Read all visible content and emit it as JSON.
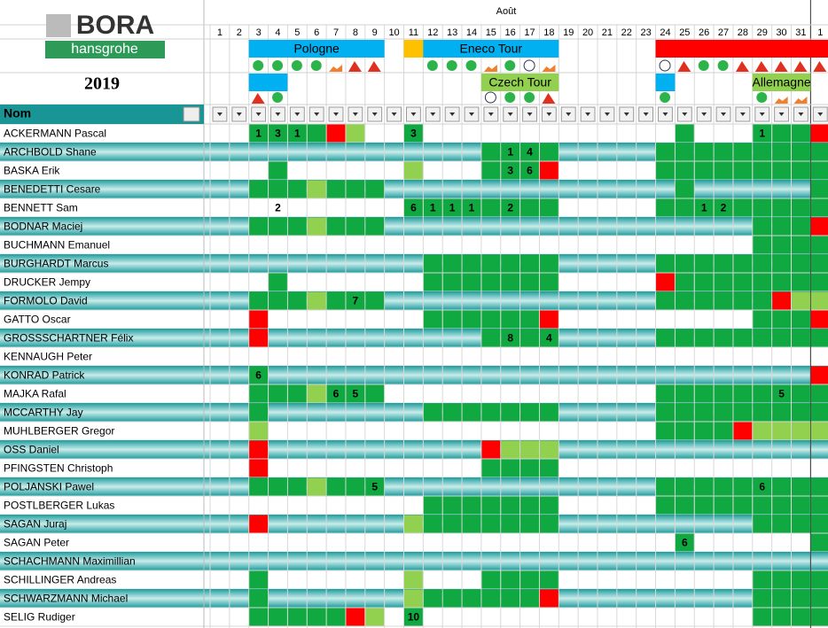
{
  "header": {
    "logo": "BORA",
    "logo_sub": "hansgrohe",
    "year": "2019",
    "month": "Août",
    "days": [
      1,
      2,
      3,
      4,
      5,
      6,
      7,
      8,
      9,
      10,
      11,
      12,
      13,
      14,
      15,
      16,
      17,
      18,
      19,
      20,
      21,
      22,
      23,
      24,
      25,
      26,
      27,
      28,
      29,
      30,
      31,
      1
    ],
    "name_column": "Nom"
  },
  "races": [
    {
      "name": "Pologne"
    },
    {
      "name": "Eneco Tour"
    },
    {
      "name": "Czech Tour"
    },
    {
      "name": "Allemagne"
    }
  ],
  "riders": [
    {
      "name": "ACKERMANN Pascal",
      "cells": [
        null,
        null,
        1,
        3,
        1,
        null,
        null,
        null,
        null,
        null,
        3,
        null,
        null,
        null,
        null,
        null,
        null,
        null,
        null,
        null,
        null,
        null,
        null,
        null,
        null,
        null,
        null,
        null,
        1,
        null,
        null,
        null
      ]
    },
    {
      "name": "ARCHBOLD Shane",
      "cells": [
        null,
        null,
        null,
        null,
        null,
        null,
        null,
        null,
        null,
        null,
        null,
        null,
        null,
        null,
        null,
        1,
        4,
        null,
        null,
        null,
        null,
        null,
        null,
        null,
        null,
        null,
        null,
        null,
        null,
        null,
        null,
        null
      ]
    },
    {
      "name": "BASKA Erik",
      "cells": [
        null,
        null,
        null,
        null,
        null,
        null,
        null,
        null,
        null,
        null,
        null,
        null,
        null,
        null,
        null,
        3,
        6,
        null,
        null,
        null,
        null,
        null,
        null,
        null,
        null,
        null,
        null,
        null,
        null,
        null,
        null,
        null
      ]
    },
    {
      "name": "BENEDETTI Cesare",
      "cells": [
        null,
        null,
        null,
        null,
        null,
        null,
        null,
        null,
        null,
        null,
        null,
        null,
        null,
        null,
        null,
        null,
        null,
        null,
        null,
        null,
        null,
        null,
        null,
        null,
        null,
        null,
        null,
        null,
        null,
        null,
        null,
        null
      ]
    },
    {
      "name": "BENNETT Sam",
      "cells": [
        null,
        null,
        null,
        2,
        null,
        null,
        null,
        null,
        null,
        null,
        6,
        1,
        1,
        1,
        null,
        2,
        null,
        null,
        null,
        null,
        null,
        null,
        null,
        null,
        null,
        1,
        2,
        null,
        null,
        null,
        null,
        null
      ]
    },
    {
      "name": "BODNAR Maciej",
      "cells": [
        null,
        null,
        null,
        null,
        null,
        null,
        null,
        null,
        null,
        null,
        null,
        null,
        null,
        null,
        null,
        null,
        null,
        null,
        null,
        null,
        null,
        null,
        null,
        null,
        null,
        null,
        null,
        null,
        null,
        null,
        null,
        null
      ]
    },
    {
      "name": "BUCHMANN Emanuel",
      "cells": [
        null,
        null,
        null,
        null,
        null,
        null,
        null,
        null,
        null,
        null,
        null,
        null,
        null,
        null,
        null,
        null,
        null,
        null,
        null,
        null,
        null,
        null,
        null,
        null,
        null,
        null,
        null,
        null,
        null,
        null,
        null,
        null
      ]
    },
    {
      "name": "BURGHARDT Marcus",
      "cells": [
        null,
        null,
        null,
        null,
        null,
        null,
        null,
        null,
        null,
        null,
        null,
        null,
        null,
        null,
        null,
        null,
        null,
        null,
        null,
        null,
        null,
        null,
        null,
        null,
        null,
        null,
        null,
        null,
        null,
        null,
        null,
        null
      ]
    },
    {
      "name": "DRUCKER Jempy",
      "cells": [
        null,
        null,
        null,
        null,
        null,
        null,
        null,
        null,
        null,
        null,
        null,
        null,
        null,
        null,
        null,
        null,
        null,
        null,
        null,
        null,
        null,
        null,
        null,
        null,
        null,
        null,
        null,
        null,
        null,
        null,
        null,
        null
      ]
    },
    {
      "name": "FORMOLO David",
      "cells": [
        null,
        null,
        null,
        null,
        null,
        null,
        null,
        7,
        null,
        null,
        null,
        null,
        null,
        null,
        null,
        null,
        null,
        null,
        null,
        null,
        null,
        null,
        null,
        null,
        null,
        null,
        null,
        null,
        null,
        null,
        null,
        null
      ]
    },
    {
      "name": "GATTO Oscar",
      "cells": [
        null,
        null,
        null,
        null,
        null,
        null,
        null,
        null,
        null,
        null,
        null,
        null,
        null,
        null,
        null,
        null,
        null,
        null,
        null,
        null,
        null,
        null,
        null,
        null,
        null,
        null,
        null,
        null,
        null,
        null,
        null,
        null
      ]
    },
    {
      "name": "GROSSSCHARTNER Félix",
      "cells": [
        null,
        null,
        null,
        null,
        null,
        null,
        null,
        null,
        null,
        null,
        null,
        null,
        null,
        null,
        null,
        8,
        null,
        4,
        null,
        null,
        null,
        null,
        null,
        null,
        null,
        null,
        null,
        null,
        null,
        null,
        null,
        null
      ]
    },
    {
      "name": "KENNAUGH Peter",
      "cells": [
        null,
        null,
        null,
        null,
        null,
        null,
        null,
        null,
        null,
        null,
        null,
        null,
        null,
        null,
        null,
        null,
        null,
        null,
        null,
        null,
        null,
        null,
        null,
        null,
        null,
        null,
        null,
        null,
        null,
        null,
        null,
        null
      ]
    },
    {
      "name": "KONRAD Patrick",
      "cells": [
        null,
        null,
        6,
        null,
        null,
        null,
        null,
        null,
        null,
        null,
        null,
        null,
        null,
        null,
        null,
        null,
        null,
        null,
        null,
        null,
        null,
        null,
        null,
        null,
        null,
        null,
        null,
        null,
        null,
        null,
        null,
        null
      ]
    },
    {
      "name": "MAJKA Rafal",
      "cells": [
        null,
        null,
        null,
        null,
        null,
        null,
        6,
        5,
        null,
        null,
        null,
        null,
        null,
        null,
        null,
        null,
        null,
        null,
        null,
        null,
        null,
        null,
        null,
        null,
        null,
        null,
        null,
        null,
        null,
        5,
        null,
        null
      ]
    },
    {
      "name": "MCCARTHY Jay",
      "cells": [
        null,
        null,
        null,
        null,
        null,
        null,
        null,
        null,
        null,
        null,
        null,
        null,
        null,
        null,
        null,
        null,
        null,
        null,
        null,
        null,
        null,
        null,
        null,
        null,
        null,
        null,
        null,
        null,
        null,
        null,
        null,
        null
      ]
    },
    {
      "name": "MUHLBERGER Gregor",
      "cells": [
        null,
        null,
        null,
        null,
        null,
        null,
        null,
        null,
        null,
        null,
        null,
        null,
        null,
        null,
        null,
        null,
        null,
        null,
        null,
        null,
        null,
        null,
        null,
        null,
        null,
        null,
        null,
        null,
        null,
        null,
        null,
        null
      ]
    },
    {
      "name": "OSS Daniel",
      "cells": [
        null,
        null,
        null,
        null,
        null,
        null,
        null,
        null,
        null,
        null,
        null,
        null,
        null,
        null,
        null,
        null,
        null,
        null,
        null,
        null,
        null,
        null,
        null,
        null,
        null,
        null,
        null,
        null,
        null,
        null,
        null,
        null
      ]
    },
    {
      "name": "PFINGSTEN Christoph",
      "cells": [
        null,
        null,
        null,
        null,
        null,
        null,
        null,
        null,
        null,
        null,
        null,
        null,
        null,
        null,
        null,
        null,
        null,
        null,
        null,
        null,
        null,
        null,
        null,
        null,
        null,
        null,
        null,
        null,
        null,
        null,
        null,
        null
      ]
    },
    {
      "name": "POLJANSKI Pawel",
      "cells": [
        null,
        null,
        null,
        null,
        null,
        null,
        null,
        null,
        5,
        null,
        null,
        null,
        null,
        null,
        null,
        null,
        null,
        null,
        null,
        null,
        null,
        null,
        null,
        null,
        null,
        null,
        null,
        null,
        6,
        null,
        null,
        null
      ]
    },
    {
      "name": "POSTLBERGER Lukas",
      "cells": [
        null,
        null,
        null,
        null,
        null,
        null,
        null,
        null,
        null,
        null,
        null,
        null,
        null,
        null,
        null,
        null,
        null,
        null,
        null,
        null,
        null,
        null,
        null,
        null,
        null,
        null,
        null,
        null,
        null,
        null,
        null,
        null
      ]
    },
    {
      "name": "SAGAN Juraj",
      "cells": [
        null,
        null,
        null,
        null,
        null,
        null,
        null,
        null,
        null,
        null,
        null,
        null,
        null,
        null,
        null,
        null,
        null,
        null,
        null,
        null,
        null,
        null,
        null,
        null,
        null,
        null,
        null,
        null,
        null,
        null,
        null,
        null
      ]
    },
    {
      "name": "SAGAN Peter",
      "cells": [
        null,
        null,
        null,
        null,
        null,
        null,
        null,
        null,
        null,
        null,
        null,
        null,
        null,
        null,
        null,
        null,
        null,
        null,
        null,
        null,
        null,
        null,
        null,
        null,
        6,
        null,
        null,
        null,
        null,
        null,
        null,
        null
      ]
    },
    {
      "name": "SCHACHMANN Maximillian",
      "cells": [
        null,
        null,
        null,
        null,
        null,
        null,
        null,
        null,
        null,
        null,
        null,
        null,
        null,
        null,
        null,
        null,
        null,
        null,
        null,
        null,
        null,
        null,
        null,
        null,
        null,
        null,
        null,
        null,
        null,
        null,
        null,
        null
      ]
    },
    {
      "name": "SCHILLINGER Andreas",
      "cells": [
        null,
        null,
        null,
        null,
        null,
        null,
        null,
        null,
        null,
        null,
        null,
        null,
        null,
        null,
        null,
        null,
        null,
        null,
        null,
        null,
        null,
        null,
        null,
        null,
        null,
        null,
        null,
        null,
        null,
        null,
        null,
        null
      ]
    },
    {
      "name": "SCHWARZMANN Michael",
      "cells": [
        null,
        null,
        null,
        null,
        null,
        null,
        null,
        null,
        null,
        null,
        null,
        null,
        null,
        null,
        null,
        null,
        null,
        null,
        null,
        null,
        null,
        null,
        null,
        null,
        null,
        null,
        null,
        null,
        null,
        null,
        null,
        null
      ]
    },
    {
      "name": "SELIG Rudiger",
      "cells": [
        null,
        null,
        null,
        null,
        null,
        null,
        null,
        null,
        null,
        null,
        10,
        null,
        null,
        null,
        null,
        null,
        null,
        null,
        null,
        null,
        null,
        null,
        null,
        null,
        null,
        null,
        null,
        null,
        null,
        null,
        null,
        null
      ]
    }
  ]
}
